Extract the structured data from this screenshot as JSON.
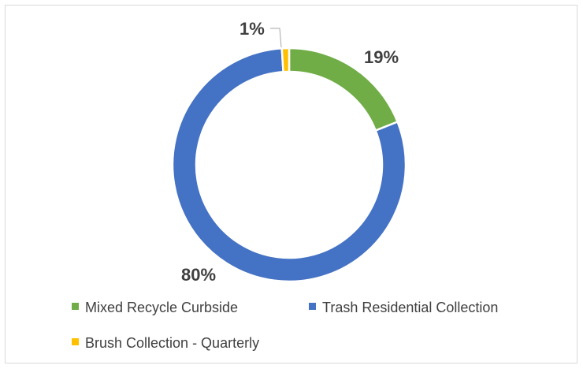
{
  "chart_data": {
    "type": "pie",
    "variant": "donut",
    "categories": [
      "Mixed Recycle Curbside",
      "Trash Residential Collection",
      "Brush Collection - Quarterly"
    ],
    "values": [
      19,
      80,
      1
    ],
    "labels": [
      "19%",
      "80%",
      "1%"
    ],
    "colors": [
      "#70ad47",
      "#4472c4",
      "#ffc000"
    ],
    "title": "",
    "legend_position": "bottom",
    "start_angle_deg": 0,
    "direction": "clockwise"
  }
}
